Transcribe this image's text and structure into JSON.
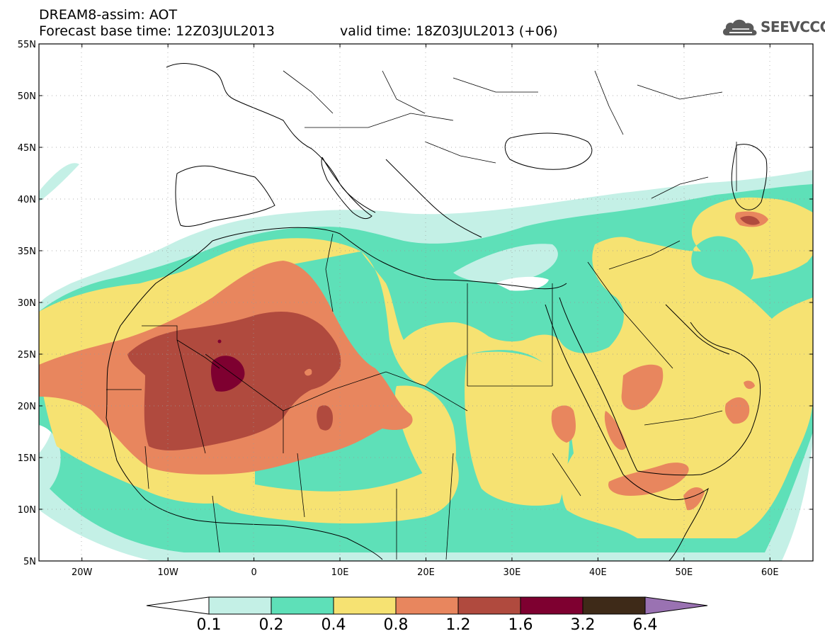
{
  "title": {
    "line1": "DREAM8-assim: AOT",
    "base_time": "Forecast base time: 12Z03JUL2013",
    "valid_time": "valid time: 18Z03JUL2013 (+06)"
  },
  "logo": {
    "text": "SEEVCCC",
    "icon": "cloud-icon",
    "color": "#555555"
  },
  "map": {
    "lon_range": [
      -25,
      65
    ],
    "lat_range": [
      5,
      55
    ],
    "lat_ticks": [
      "5N",
      "10N",
      "15N",
      "20N",
      "25N",
      "30N",
      "35N",
      "40N",
      "45N",
      "50N",
      "55N"
    ],
    "lon_ticks": [
      "20W",
      "10W",
      "0",
      "10E",
      "20E",
      "30E",
      "40E",
      "50E",
      "60E"
    ]
  },
  "legend": {
    "labels": [
      "0.1",
      "0.2",
      "0.4",
      "0.8",
      "1.2",
      "1.6",
      "3.2",
      "6.4"
    ],
    "colors": [
      "#c4f0e6",
      "#5ee0b8",
      "#f6e272",
      "#e8865e",
      "#b04a3e",
      "#7e0030",
      "#3e2a18",
      "#9a72b2"
    ],
    "colors_note_under": "#ffffff"
  }
}
